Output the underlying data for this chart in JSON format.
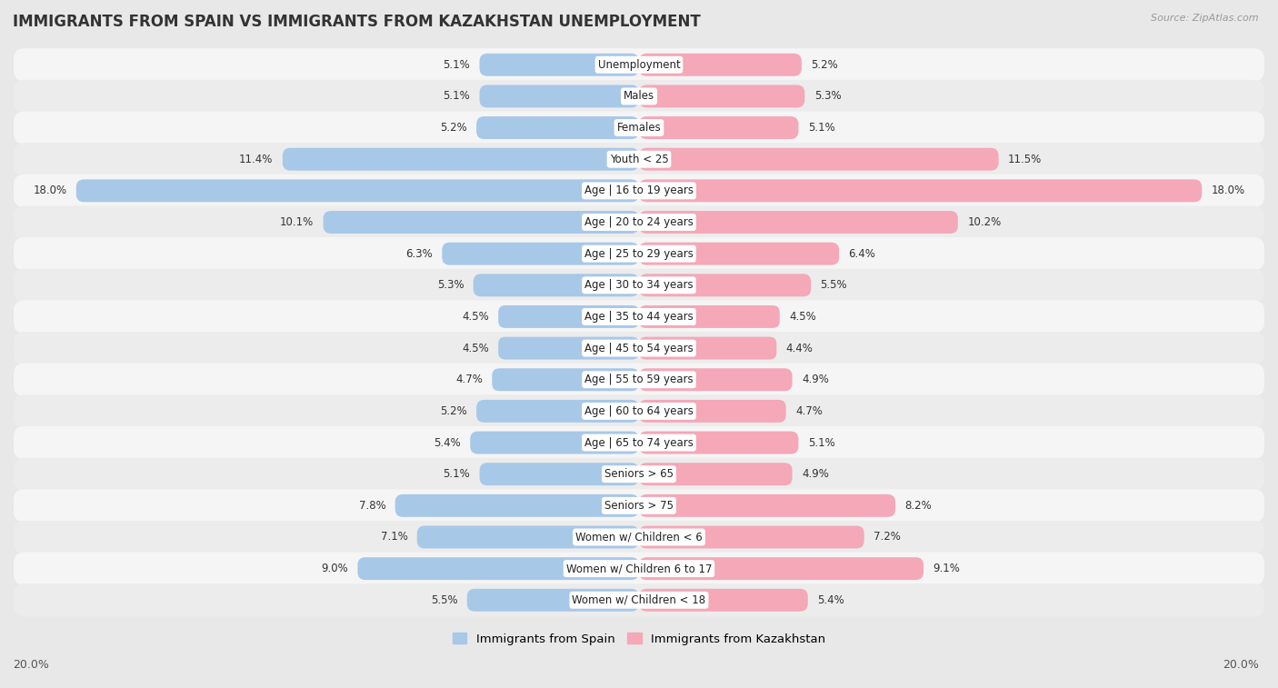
{
  "title": "IMMIGRANTS FROM SPAIN VS IMMIGRANTS FROM KAZAKHSTAN UNEMPLOYMENT",
  "source": "Source: ZipAtlas.com",
  "categories": [
    "Unemployment",
    "Males",
    "Females",
    "Youth < 25",
    "Age | 16 to 19 years",
    "Age | 20 to 24 years",
    "Age | 25 to 29 years",
    "Age | 30 to 34 years",
    "Age | 35 to 44 years",
    "Age | 45 to 54 years",
    "Age | 55 to 59 years",
    "Age | 60 to 64 years",
    "Age | 65 to 74 years",
    "Seniors > 65",
    "Seniors > 75",
    "Women w/ Children < 6",
    "Women w/ Children 6 to 17",
    "Women w/ Children < 18"
  ],
  "spain_values": [
    5.1,
    5.1,
    5.2,
    11.4,
    18.0,
    10.1,
    6.3,
    5.3,
    4.5,
    4.5,
    4.7,
    5.2,
    5.4,
    5.1,
    7.8,
    7.1,
    9.0,
    5.5
  ],
  "kazakhstan_values": [
    5.2,
    5.3,
    5.1,
    11.5,
    18.0,
    10.2,
    6.4,
    5.5,
    4.5,
    4.4,
    4.9,
    4.7,
    5.1,
    4.9,
    8.2,
    7.2,
    9.1,
    5.4
  ],
  "spain_color": "#a8c8e8",
  "kazakhstan_color": "#f4a8b8",
  "axis_max": 20.0,
  "background_color": "#e8e8e8",
  "row_color_odd": "#f5f5f5",
  "row_color_even": "#ececec",
  "label_fontsize": 8.5,
  "title_fontsize": 12,
  "legend_spain": "Immigrants from Spain",
  "legend_kazakhstan": "Immigrants from Kazakhstan"
}
